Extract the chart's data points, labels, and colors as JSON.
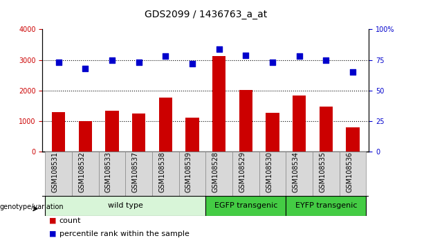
{
  "title": "GDS2099 / 1436763_a_at",
  "samples": [
    "GSM108531",
    "GSM108532",
    "GSM108533",
    "GSM108537",
    "GSM108538",
    "GSM108539",
    "GSM108528",
    "GSM108529",
    "GSM108530",
    "GSM108534",
    "GSM108535",
    "GSM108536"
  ],
  "counts": [
    1310,
    1010,
    1340,
    1250,
    1780,
    1120,
    3120,
    2020,
    1280,
    1840,
    1480,
    810
  ],
  "percentiles": [
    73,
    68,
    75,
    73,
    78,
    72,
    84,
    79,
    73,
    78,
    75,
    65
  ],
  "bar_color": "#cc0000",
  "dot_color": "#0000cc",
  "ylim_left": [
    0,
    4000
  ],
  "ylim_right": [
    0,
    100
  ],
  "yticks_left": [
    0,
    1000,
    2000,
    3000,
    4000
  ],
  "yticks_right": [
    0,
    25,
    50,
    75,
    100
  ],
  "groups": [
    {
      "label": "wild type",
      "start": 0,
      "end": 6,
      "color": "#d8f5d8"
    },
    {
      "label": "EGFP transgenic",
      "start": 6,
      "end": 9,
      "color": "#44cc44"
    },
    {
      "label": "EYFP transgenic",
      "start": 9,
      "end": 12,
      "color": "#44cc44"
    }
  ],
  "sample_bg_color": "#d8d8d8",
  "sample_border_color": "#888888",
  "legend_count_color": "#cc0000",
  "legend_dot_color": "#0000cc",
  "title_fontsize": 10,
  "tick_fontsize": 7,
  "group_fontsize": 8,
  "legend_fontsize": 8
}
